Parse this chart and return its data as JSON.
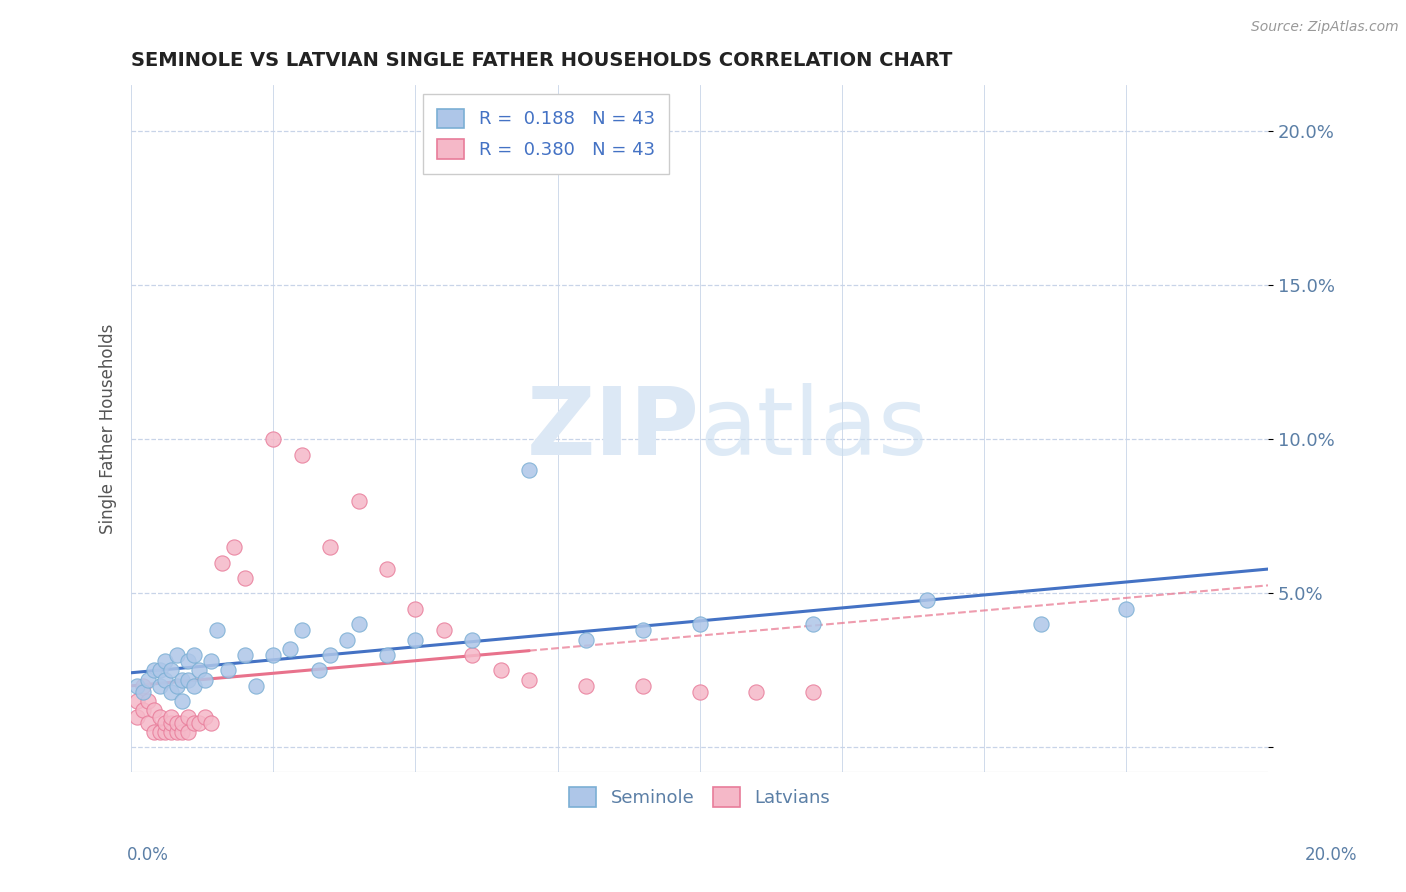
{
  "title": "SEMINOLE VS LATVIAN SINGLE FATHER HOUSEHOLDS CORRELATION CHART",
  "source": "Source: ZipAtlas.com",
  "ylabel": "Single Father Households",
  "xlim": [
    0.0,
    0.2
  ],
  "ylim": [
    -0.008,
    0.215
  ],
  "seminole_R": "0.188",
  "seminole_N": "43",
  "latvian_R": "0.380",
  "latvian_N": "43",
  "seminole_color": "#aec6e8",
  "latvian_color": "#f5b8c8",
  "seminole_edge_color": "#7bafd4",
  "latvian_edge_color": "#e87c9a",
  "seminole_line_color": "#4472c4",
  "latvian_line_color": "#e8728c",
  "background_color": "#ffffff",
  "grid_color": "#c8d4e8",
  "watermark_color": "#dce8f5",
  "seminole_x": [
    0.001,
    0.002,
    0.003,
    0.004,
    0.005,
    0.005,
    0.006,
    0.006,
    0.007,
    0.007,
    0.008,
    0.008,
    0.009,
    0.009,
    0.01,
    0.01,
    0.011,
    0.011,
    0.012,
    0.013,
    0.014,
    0.015,
    0.017,
    0.02,
    0.022,
    0.025,
    0.028,
    0.03,
    0.033,
    0.035,
    0.038,
    0.04,
    0.045,
    0.05,
    0.06,
    0.07,
    0.08,
    0.09,
    0.1,
    0.12,
    0.14,
    0.16,
    0.175
  ],
  "seminole_y": [
    0.02,
    0.018,
    0.022,
    0.025,
    0.02,
    0.025,
    0.022,
    0.028,
    0.018,
    0.025,
    0.02,
    0.03,
    0.015,
    0.022,
    0.022,
    0.028,
    0.02,
    0.03,
    0.025,
    0.022,
    0.028,
    0.038,
    0.025,
    0.03,
    0.02,
    0.03,
    0.032,
    0.038,
    0.025,
    0.03,
    0.035,
    0.04,
    0.03,
    0.035,
    0.035,
    0.09,
    0.035,
    0.038,
    0.04,
    0.04,
    0.048,
    0.04,
    0.045
  ],
  "latvian_x": [
    0.001,
    0.001,
    0.002,
    0.002,
    0.003,
    0.003,
    0.004,
    0.004,
    0.005,
    0.005,
    0.006,
    0.006,
    0.007,
    0.007,
    0.007,
    0.008,
    0.008,
    0.009,
    0.009,
    0.01,
    0.01,
    0.011,
    0.012,
    0.013,
    0.014,
    0.016,
    0.018,
    0.02,
    0.025,
    0.03,
    0.035,
    0.04,
    0.045,
    0.05,
    0.055,
    0.06,
    0.065,
    0.07,
    0.08,
    0.09,
    0.1,
    0.11,
    0.12
  ],
  "latvian_y": [
    0.01,
    0.015,
    0.012,
    0.02,
    0.008,
    0.015,
    0.005,
    0.012,
    0.005,
    0.01,
    0.005,
    0.008,
    0.005,
    0.008,
    0.01,
    0.005,
    0.008,
    0.005,
    0.008,
    0.005,
    0.01,
    0.008,
    0.008,
    0.01,
    0.008,
    0.06,
    0.065,
    0.055,
    0.1,
    0.095,
    0.065,
    0.08,
    0.058,
    0.045,
    0.038,
    0.03,
    0.025,
    0.022,
    0.02,
    0.02,
    0.018,
    0.018,
    0.018
  ]
}
